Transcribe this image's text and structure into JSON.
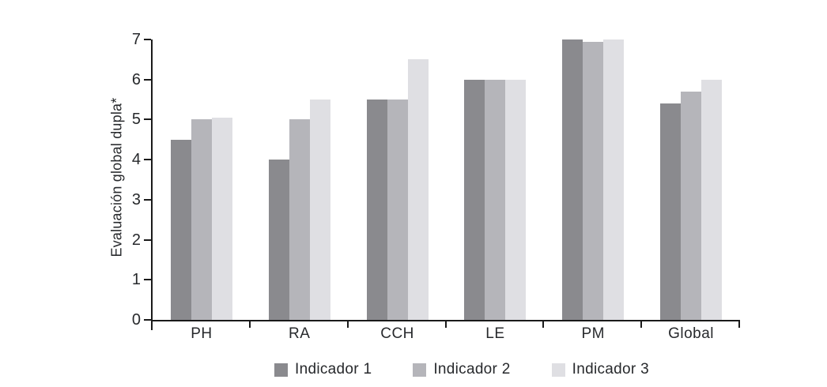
{
  "chart_data": {
    "type": "bar",
    "title": "",
    "xlabel": "",
    "ylabel": "Evaluación global dupla*",
    "categories": [
      "PH",
      "RA",
      "CCH",
      "LE",
      "PM",
      "Global"
    ],
    "series": [
      {
        "name": "Indicador 1",
        "color": "#8a8a8e",
        "values": [
          4.5,
          4.0,
          5.5,
          6.0,
          7.0,
          5.4
        ]
      },
      {
        "name": "Indicador 2",
        "color": "#b5b5ba",
        "values": [
          5.0,
          5.0,
          5.5,
          6.0,
          6.95,
          5.7
        ]
      },
      {
        "name": "Indicador 3",
        "color": "#dfdfe3",
        "values": [
          5.05,
          5.5,
          6.5,
          6.0,
          7.0,
          6.0
        ]
      }
    ],
    "ylim": [
      0,
      7
    ],
    "yticks": [
      "0",
      "1",
      "2",
      "3",
      "4",
      "5",
      "6",
      "7"
    ],
    "legend": [
      "Indicador 1",
      "Indicador 2",
      "Indicador 3"
    ],
    "legend_position": "bottom",
    "grid": false,
    "axis_color": "#1a1a1a",
    "text_color": "#27292c",
    "background_color": "#ffffff"
  }
}
